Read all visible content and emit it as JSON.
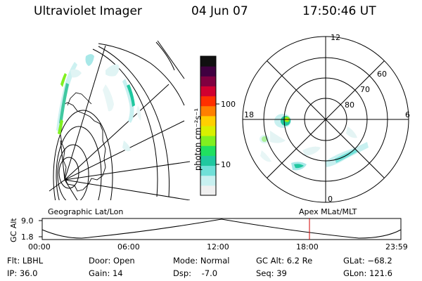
{
  "header": {
    "title": "Ultraviolet Imager",
    "date": "04 Jun 07",
    "time": "17:50:46 UT"
  },
  "colorbar": {
    "unit_label": "photon cm⁻²s⁻¹",
    "ticks": [
      "100",
      "10"
    ],
    "colors": [
      "#f0f0f0",
      "#c8f0f0",
      "#70e0d8",
      "#20c8a0",
      "#20e060",
      "#80f020",
      "#d8f000",
      "#ffd000",
      "#ff8000",
      "#ff3000",
      "#d00030",
      "#800040",
      "#400040",
      "#101010"
    ]
  },
  "left_panel": {
    "caption": "Geographic Lat/Lon"
  },
  "right_panel": {
    "caption": "Apex MLat/MLT",
    "mlt_labels": {
      "top": "12",
      "right": "6",
      "bottom": "0",
      "left": "18"
    },
    "lat_labels": [
      "60",
      "70",
      "80"
    ]
  },
  "altitude_plot": {
    "ylabel": "GC Alt",
    "y_ticks": [
      "9.0",
      "1.8"
    ],
    "x_ticks": [
      "00:00",
      "06:00",
      "12:00",
      "18:00",
      "23:59"
    ],
    "marker_color": "#d00000"
  },
  "status": {
    "filter": "Flt: LBHL",
    "ip": "IP: 36.0",
    "door": "Door: Open",
    "gain": "Gain: 14",
    "mode": "Mode: Normal",
    "dsp": "Dsp:    -7.0",
    "gc_alt": "GC Alt: 6.2 Re",
    "seq": "Seq: 39",
    "glat": "GLat: −68.2",
    "glon": "GLon: 121.6"
  }
}
